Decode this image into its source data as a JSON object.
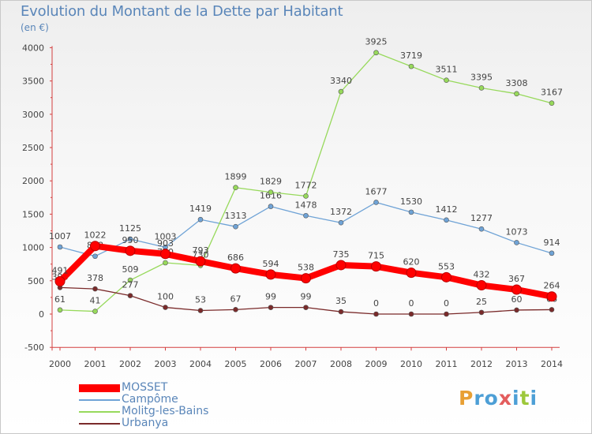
{
  "title": "Evolution du Montant de la Dette par Habitant",
  "subtitle": "(en €)",
  "brand": {
    "letters": [
      "P",
      "r",
      "o",
      "x",
      "i",
      "t",
      "i"
    ],
    "colors": [
      "#e8a034",
      "#4d9fd6",
      "#4d9fd6",
      "#e35d5d",
      "#4d9fd6",
      "#9dc83b",
      "#4d9fd6"
    ]
  },
  "chart_data": {
    "type": "line",
    "x": [
      "2000",
      "2001",
      "2002",
      "2003",
      "2004",
      "2005",
      "2006",
      "2007",
      "2008",
      "2009",
      "2010",
      "2011",
      "2012",
      "2013",
      "2014"
    ],
    "ylim": [
      -500,
      4000
    ],
    "yticks": [
      -500,
      0,
      500,
      1000,
      1500,
      2000,
      2500,
      3000,
      3500,
      4000
    ],
    "grid": false,
    "legend": "bottom-left",
    "series": [
      {
        "name": "MOSSET",
        "color": "#ff0000",
        "values": [
          491,
          1022,
          950,
          903,
          793,
          686,
          594,
          538,
          735,
          715,
          620,
          553,
          432,
          367,
          264
        ]
      },
      {
        "name": "Campôme",
        "color": "#6fa3d6",
        "values": [
          1007,
          868,
          1125,
          1003,
          1419,
          1313,
          1616,
          1478,
          1372,
          1677,
          1530,
          1412,
          1277,
          1073,
          914
        ]
      },
      {
        "name": "Molitg-les-Bains",
        "color": "#97d95b",
        "values": [
          61,
          41,
          509,
          770,
          730,
          1899,
          1829,
          1772,
          3340,
          3925,
          3719,
          3511,
          3395,
          3308,
          3167
        ]
      },
      {
        "name": "Urbanya",
        "color": "#7a2a2a",
        "values": [
          398,
          378,
          277,
          100,
          53,
          67,
          99,
          99,
          35,
          0,
          0,
          0,
          25,
          60,
          66
        ]
      }
    ]
  }
}
